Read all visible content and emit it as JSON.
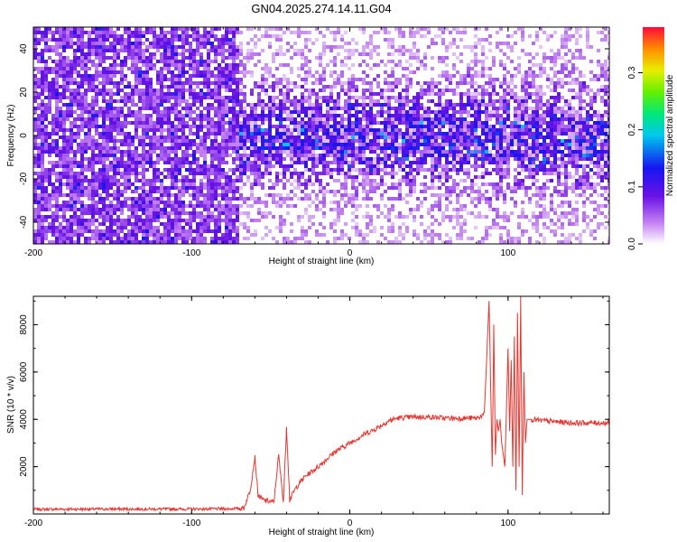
{
  "title": "GN04.2025.274.14.11.G04",
  "chart_data": [
    {
      "type": "heatmap",
      "name": "spectrogram",
      "xlabel": "Height of straight line (km)",
      "ylabel": "Frequency (Hz)",
      "xlim": [
        -200,
        164
      ],
      "ylim": [
        -50,
        50
      ],
      "xticks": [
        -200,
        -100,
        0,
        100
      ],
      "yticks": [
        -40,
        -20,
        0,
        20,
        40
      ],
      "colorbar": {
        "label": "Normalized spectral amplitude",
        "range": [
          0,
          0.38
        ],
        "ticks": [
          0.0,
          0.1,
          0.2,
          0.3
        ]
      },
      "regions": [
        {
          "x_range": [
            -200,
            -72
          ],
          "description": "dense noise, amplitude ~0.05-0.12, full band"
        },
        {
          "x_range": [
            -72,
            164
          ],
          "description": "signal concentrated near 0 Hz (+/-25 Hz), amplitude up to ~0.2"
        }
      ]
    },
    {
      "type": "line",
      "name": "snr",
      "xlabel": "Height of straight line (km)",
      "ylabel": "SNR (10 * v/v)",
      "xlim": [
        -200,
        164
      ],
      "ylim": [
        0,
        9200
      ],
      "xticks": [
        -200,
        -100,
        0,
        100
      ],
      "yticks": [
        2000,
        4000,
        6000,
        8000
      ],
      "color": "#e8352f",
      "series": [
        {
          "name": "SNR",
          "x": [
            -200,
            -150,
            -100,
            -75,
            -67,
            -63,
            -60,
            -58,
            -55,
            -52,
            -48,
            -45,
            -42,
            -40,
            -38,
            -35,
            -32,
            -28,
            -24,
            -20,
            -15,
            -10,
            -5,
            0,
            5,
            10,
            15,
            20,
            25,
            30,
            40,
            50,
            60,
            70,
            80,
            85,
            88,
            90,
            91,
            92,
            93,
            94,
            95,
            96,
            98,
            100,
            101,
            102,
            103,
            104,
            105,
            106,
            107,
            108,
            109,
            110,
            111,
            112,
            115,
            120,
            130,
            140,
            150,
            164
          ],
          "y": [
            200,
            210,
            210,
            220,
            250,
            1000,
            2400,
            800,
            600,
            550,
            500,
            2500,
            500,
            3700,
            600,
            1000,
            1300,
            1600,
            1800,
            2000,
            2300,
            2600,
            2800,
            3000,
            3200,
            3400,
            3550,
            3750,
            3950,
            4050,
            4100,
            4100,
            4050,
            4050,
            4050,
            4200,
            9000,
            2000,
            8000,
            2500,
            4000,
            3500,
            4000,
            3000,
            2000,
            7000,
            3500,
            6500,
            2000,
            7500,
            1000,
            8500,
            2000,
            9200,
            800,
            6000,
            3000,
            4000,
            4000,
            3950,
            3900,
            3850,
            3850,
            3850
          ]
        }
      ]
    }
  ]
}
